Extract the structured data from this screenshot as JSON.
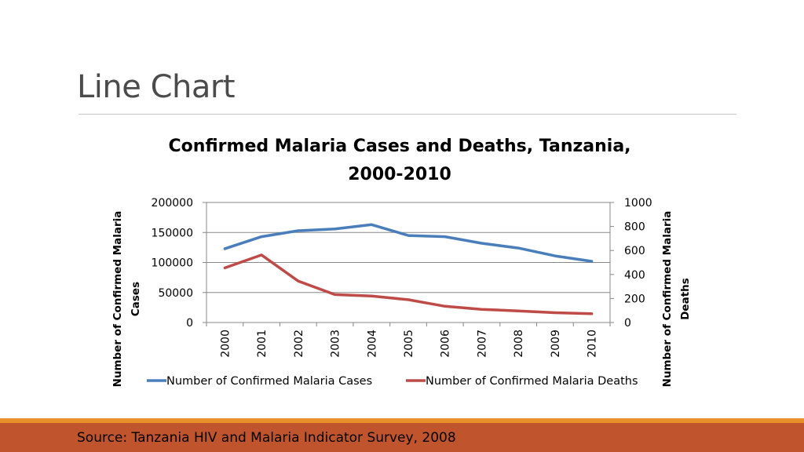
{
  "slide": {
    "title": "Line Chart",
    "source": "Source: Tanzania HIV and Malaria Indicator Survey, 2008"
  },
  "colors": {
    "cases": "#4a7ebb",
    "deaths": "#be4b48",
    "grid": "#878787",
    "footer_orange": "#e8902a",
    "footer_bar": "#c0542d"
  },
  "chart_data": {
    "type": "line",
    "title_lines": [
      "Confirmed Malaria Cases and Deaths, Tanzania,",
      "2000-2010"
    ],
    "categories": [
      "2000",
      "2001",
      "2002",
      "2003",
      "2004",
      "2005",
      "2006",
      "2007",
      "2008",
      "2009",
      "2010"
    ],
    "series": [
      {
        "name": "Number of Confirmed Malaria Cases",
        "axis": "left",
        "values": [
          123000,
          143000,
          153000,
          156000,
          163000,
          145000,
          143000,
          132000,
          124000,
          111000,
          102000
        ]
      },
      {
        "name": "Number of Confirmed Malaria Deaths",
        "axis": "right",
        "values": [
          455,
          563,
          345,
          233,
          220,
          190,
          135,
          110,
          97,
          82,
          73
        ]
      }
    ],
    "y_left": {
      "label_lines": [
        "Number of Confirmed Malaria",
        "Cases"
      ],
      "range": [
        0,
        200000
      ],
      "ticks": [
        "0",
        "50000",
        "100000",
        "150000",
        "200000"
      ]
    },
    "y_right": {
      "label_lines": [
        "Number of Confirmed Malaria",
        "Deaths"
      ],
      "range": [
        0,
        1000
      ],
      "ticks": [
        "0",
        "200",
        "400",
        "600",
        "800",
        "1000"
      ]
    },
    "legend_position": "bottom"
  }
}
